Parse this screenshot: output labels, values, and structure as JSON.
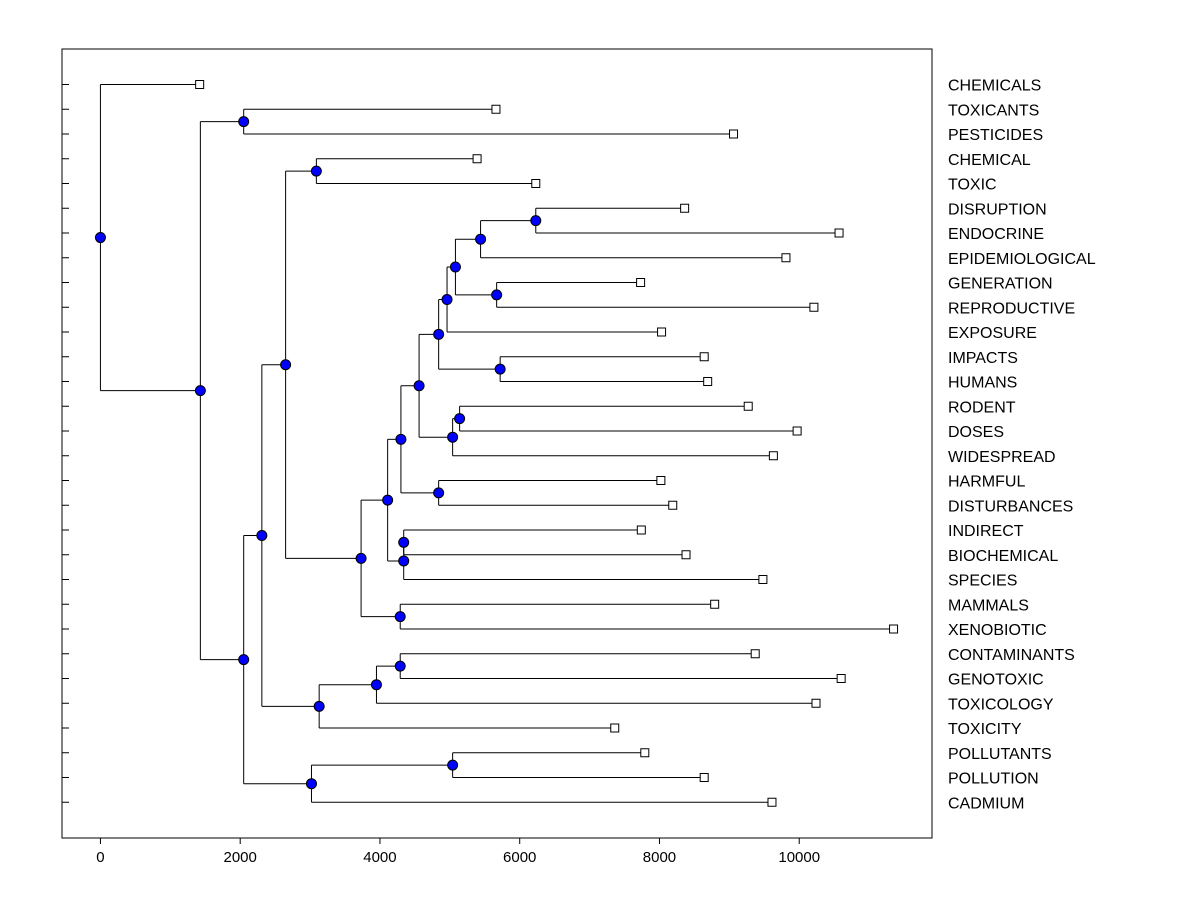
{
  "chart_data": {
    "type": "dendrogram",
    "title": "",
    "xlabel": "",
    "ylabel": "",
    "xlim": [
      -550,
      11900
    ],
    "x_ticks": [
      0,
      2000,
      4000,
      6000,
      8000,
      10000
    ],
    "leaves": [
      {
        "label": "CHEMICALS",
        "x": 1420
      },
      {
        "label": "TOXICANTS",
        "x": 5660
      },
      {
        "label": "PESTICIDES",
        "x": 9060
      },
      {
        "label": "CHEMICAL",
        "x": 5390
      },
      {
        "label": "TOXIC",
        "x": 6230
      },
      {
        "label": "DISRUPTION",
        "x": 8360
      },
      {
        "label": "ENDOCRINE",
        "x": 10570
      },
      {
        "label": "EPIDEMIOLOGICAL",
        "x": 9810
      },
      {
        "label": "GENERATION",
        "x": 7730
      },
      {
        "label": "REPRODUCTIVE",
        "x": 10210
      },
      {
        "label": "EXPOSURE",
        "x": 8030
      },
      {
        "label": "IMPACTS",
        "x": 8640
      },
      {
        "label": "HUMANS",
        "x": 8690
      },
      {
        "label": "RODENT",
        "x": 9270
      },
      {
        "label": "DOSES",
        "x": 9970
      },
      {
        "label": "WIDESPREAD",
        "x": 9630
      },
      {
        "label": "HARMFUL",
        "x": 8020
      },
      {
        "label": "DISTURBANCES",
        "x": 8190
      },
      {
        "label": "INDIRECT",
        "x": 7740
      },
      {
        "label": "BIOCHEMICAL",
        "x": 8380
      },
      {
        "label": "SPECIES",
        "x": 9480
      },
      {
        "label": "MAMMALS",
        "x": 8790
      },
      {
        "label": "XENOBIOTIC",
        "x": 11350
      },
      {
        "label": "CONTAMINANTS",
        "x": 9370
      },
      {
        "label": "GENOTOXIC",
        "x": 10600
      },
      {
        "label": "TOXICOLOGY",
        "x": 10240
      },
      {
        "label": "TOXICITY",
        "x": 7360
      },
      {
        "label": "POLLUTANTS",
        "x": 7790
      },
      {
        "label": "POLLUTION",
        "x": 8640
      },
      {
        "label": "CADMIUM",
        "x": 9610
      }
    ],
    "merges": [
      {
        "id": "n1",
        "x": 0,
        "children": [
          "L0",
          "n2"
        ]
      },
      {
        "id": "n2",
        "x": 1430,
        "children": [
          "n3",
          "n4"
        ]
      },
      {
        "id": "n3",
        "x": 2050,
        "children": [
          "L1",
          "L2"
        ]
      },
      {
        "id": "n4",
        "x": 2050,
        "children": [
          "n5",
          "n26"
        ]
      },
      {
        "id": "n5",
        "x": 2310,
        "children": [
          "n6",
          "n22"
        ]
      },
      {
        "id": "n6",
        "x": 2650,
        "children": [
          "n7",
          "n8"
        ]
      },
      {
        "id": "n7",
        "x": 3090,
        "children": [
          "L3",
          "L4"
        ]
      },
      {
        "id": "n8",
        "x": 3730,
        "children": [
          "n9",
          "n21"
        ]
      },
      {
        "id": "n9",
        "x": 4110,
        "children": [
          "n10",
          "n18"
        ]
      },
      {
        "id": "n10",
        "x": 4300,
        "children": [
          "n11",
          "n17"
        ]
      },
      {
        "id": "n11",
        "x": 4560,
        "children": [
          "n12",
          "n15"
        ]
      },
      {
        "id": "n12",
        "x": 4840,
        "children": [
          "n13",
          "n16"
        ]
      },
      {
        "id": "n13",
        "x": 4960,
        "children": [
          "n14",
          "L10"
        ]
      },
      {
        "id": "n14",
        "x": 5080,
        "children": [
          "n14a",
          "n14b"
        ]
      },
      {
        "id": "n14a",
        "x": 5440,
        "children": [
          "n14c",
          "L7"
        ]
      },
      {
        "id": "n14c",
        "x": 6230,
        "children": [
          "L5",
          "L6"
        ]
      },
      {
        "id": "n14b",
        "x": 5670,
        "children": [
          "L8",
          "L9"
        ]
      },
      {
        "id": "n16",
        "x": 5720,
        "children": [
          "L11",
          "L12"
        ]
      },
      {
        "id": "n15",
        "x": 5040,
        "children": [
          "n15a",
          "L15"
        ]
      },
      {
        "id": "n15a",
        "x": 5140,
        "children": [
          "L13",
          "L14"
        ]
      },
      {
        "id": "n17",
        "x": 4840,
        "children": [
          "L16",
          "L17"
        ]
      },
      {
        "id": "n18",
        "x": 4340,
        "children": [
          "n19",
          "L20"
        ]
      },
      {
        "id": "n19",
        "x": 4340,
        "children": [
          "L18",
          "L19"
        ]
      },
      {
        "id": "n21",
        "x": 4290,
        "children": [
          "L21",
          "L22"
        ]
      },
      {
        "id": "n22",
        "x": 3130,
        "children": [
          "n23",
          "L26"
        ]
      },
      {
        "id": "n23",
        "x": 3950,
        "children": [
          "n24",
          "L25"
        ]
      },
      {
        "id": "n24",
        "x": 4290,
        "children": [
          "L23",
          "L24"
        ]
      },
      {
        "id": "n26",
        "x": 3020,
        "children": [
          "n27",
          "L29"
        ]
      },
      {
        "id": "n27",
        "x": 5040,
        "children": [
          "L27",
          "L28"
        ]
      }
    ]
  }
}
